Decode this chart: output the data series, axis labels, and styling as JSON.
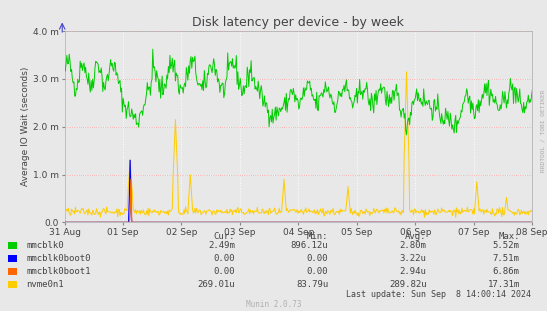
{
  "title": "Disk latency per device - by week",
  "ylabel": "Average IO Wait (seconds)",
  "xlabel_ticks": [
    "31 Aug",
    "01 Sep",
    "02 Sep",
    "03 Sep",
    "04 Sep",
    "05 Sep",
    "06 Sep",
    "07 Sep",
    "08 Sep"
  ],
  "ylim": [
    0.0,
    0.004
  ],
  "yticks": [
    0.0,
    0.001,
    0.002,
    0.003,
    0.004
  ],
  "ytick_labels": [
    "0.0",
    "1.0 m",
    "2.0 m",
    "3.0 m",
    "4.0 m"
  ],
  "bg_color": "#e8e8e8",
  "plot_bg_color": "#e8e8e8",
  "grid_color": "#ffffff",
  "red_line_color": "#ff9999",
  "colors": {
    "mmcblk0": "#00cc00",
    "mmcblk0boot0": "#0000ff",
    "mmcblk0boot1": "#ff6600",
    "nvme0n1": "#ffcc00"
  },
  "table_headers": [
    "Cur:",
    "Min:",
    "Avg:",
    "Max:"
  ],
  "table_rows": [
    [
      "mmcblk0",
      "2.49m",
      "896.12u",
      "2.80m",
      "5.52m"
    ],
    [
      "mmcblk0boot0",
      "0.00",
      "0.00",
      "3.22u",
      "7.51m"
    ],
    [
      "mmcblk0boot1",
      "0.00",
      "0.00",
      "2.94u",
      "6.86m"
    ],
    [
      "nvme0n1",
      "269.01u",
      "83.79u",
      "289.82u",
      "17.31m"
    ]
  ],
  "row_colors": [
    "#00cc00",
    "#0000ff",
    "#ff6600",
    "#ffcc00"
  ],
  "footer": "Last update: Sun Sep  8 14:00:14 2024",
  "watermark": "Munin 2.0.73",
  "side_label": "RRDTOOL / TOBI OETIKER",
  "n_points": 600
}
